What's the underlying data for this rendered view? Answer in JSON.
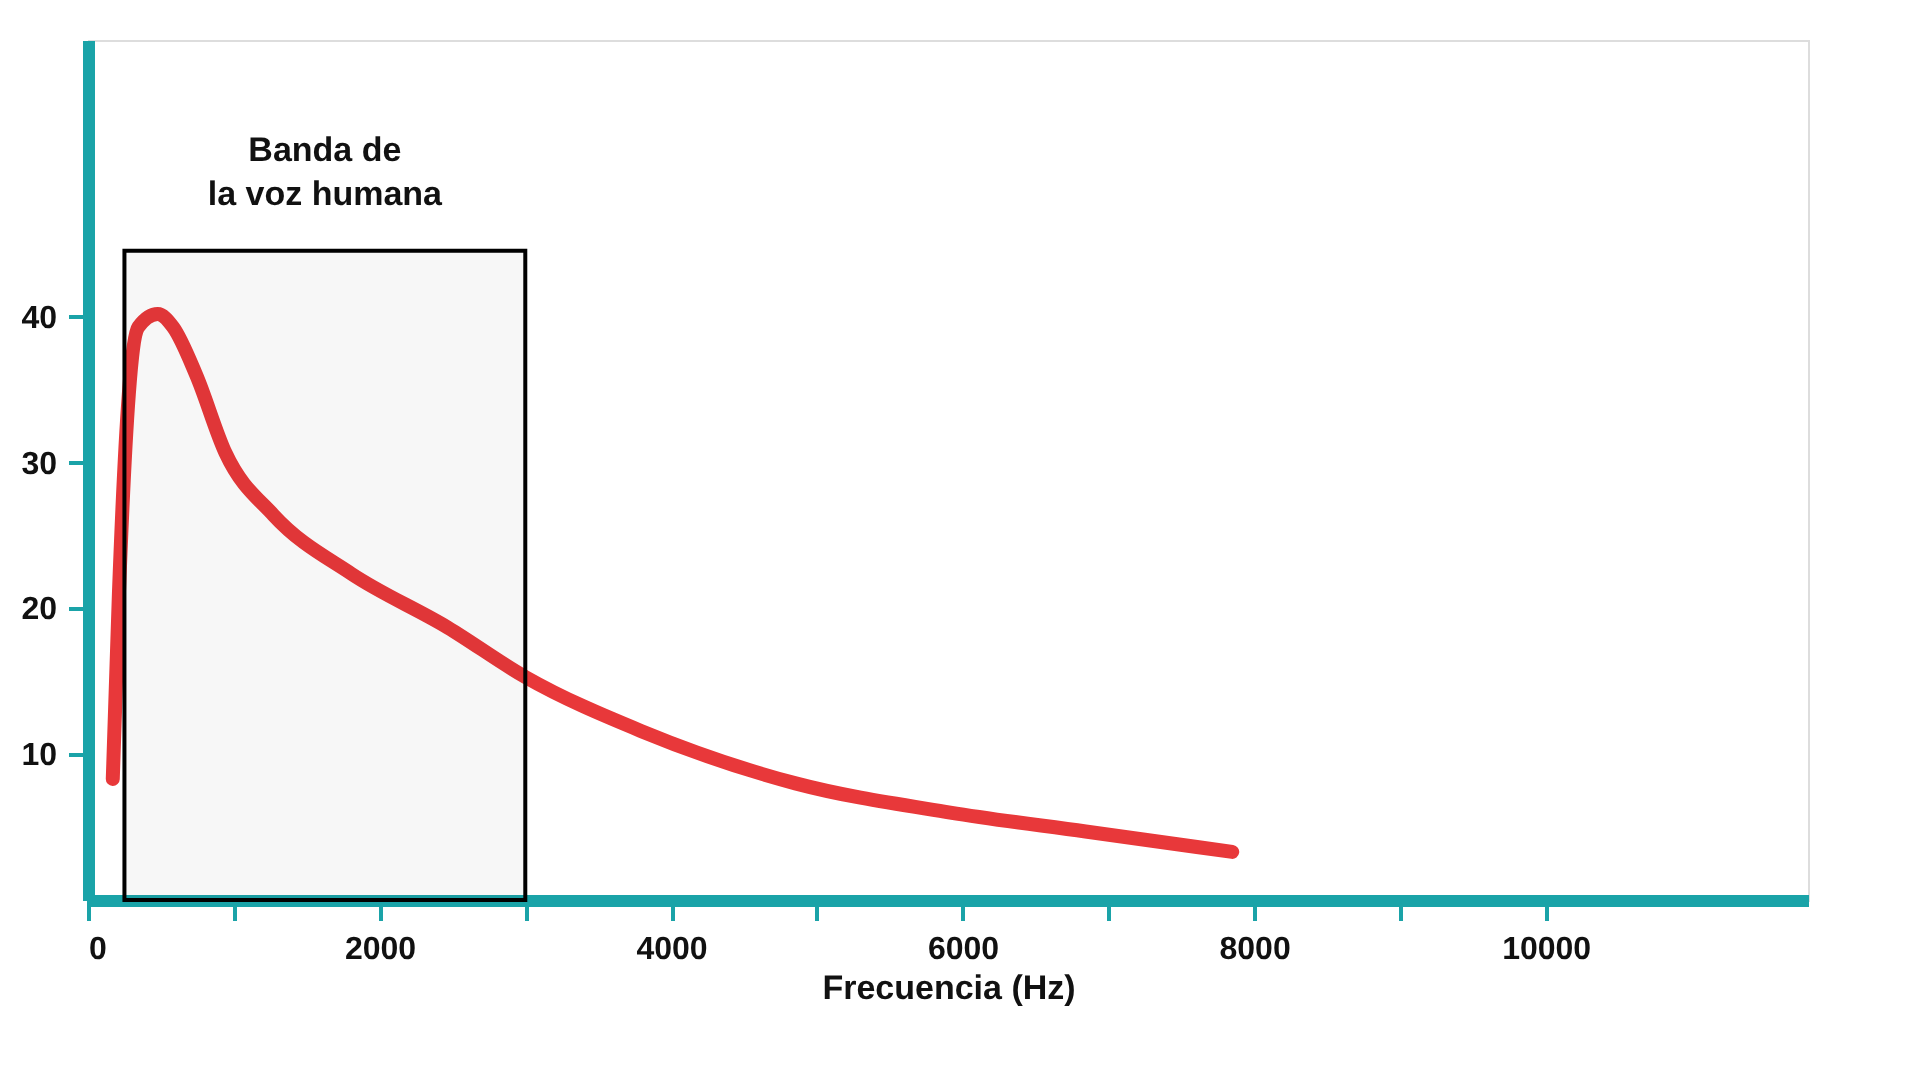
{
  "chart_data": {
    "type": "line",
    "xlabel": "Frecuencia (Hz)",
    "x": [
      170,
      212,
      280,
      345,
      478,
      584,
      743,
      942,
      1273,
      1804,
      2467,
      3000,
      3793,
      4854,
      5915,
      6844,
      7850
    ],
    "series": [
      {
        "color": "#e8383a",
        "values": [
          8.3,
          21,
          34.7,
          39.3,
          40.2,
          39.3,
          36,
          30.7,
          26.4,
          22.4,
          18.7,
          15.3,
          11.6,
          8,
          6,
          4.7,
          3.3
        ]
      }
    ],
    "xlim": [
      0,
      11800
    ],
    "ylim": [
      0,
      59
    ],
    "xticks": [
      0,
      {
        "value": 1000,
        "label": null
      },
      2000,
      {
        "value": 3000,
        "label": null
      },
      4000,
      {
        "value": 5000,
        "label": null
      },
      6000,
      {
        "value": 7000,
        "label": null
      },
      8000,
      {
        "value": 9000,
        "label": null
      },
      10000
    ],
    "yticks": [
      10,
      20,
      30,
      40
    ],
    "bands": [
      {
        "axis": "x",
        "from": 250,
        "to": 3000,
        "label": "Banda de\nla voz humana",
        "color": "#000000"
      }
    ],
    "line_style": "solid"
  }
}
